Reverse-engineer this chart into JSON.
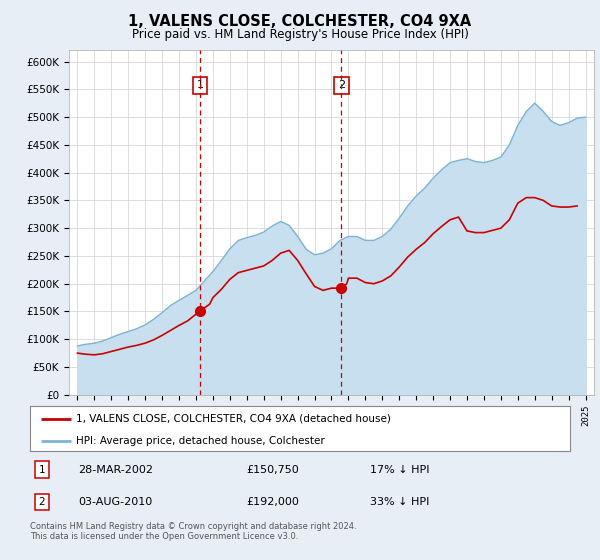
{
  "title": "1, VALENS CLOSE, COLCHESTER, CO4 9XA",
  "subtitle": "Price paid vs. HM Land Registry's House Price Index (HPI)",
  "hpi_color": "#7fb3d3",
  "hpi_fill_color": "#c8dff0",
  "price_color": "#cc0000",
  "sale1_year": 2002.23,
  "sale1_price": 150750,
  "sale1_label": "1",
  "sale1_date": "28-MAR-2002",
  "sale1_hpi_pct": "17% ↓ HPI",
  "sale2_year": 2010.59,
  "sale2_price": 192000,
  "sale2_label": "2",
  "sale2_date": "03-AUG-2010",
  "sale2_hpi_pct": "33% ↓ HPI",
  "legend_label_price": "1, VALENS CLOSE, COLCHESTER, CO4 9XA (detached house)",
  "legend_label_hpi": "HPI: Average price, detached house, Colchester",
  "footer": "Contains HM Land Registry data © Crown copyright and database right 2024.\nThis data is licensed under the Open Government Licence v3.0.",
  "ylim_min": 0,
  "ylim_max": 620000,
  "background_color": "#e8eef5",
  "plot_bg_color": "#ffffff",
  "grid_color": "#d0d0d0",
  "years_hpi": [
    1995.0,
    1995.5,
    1996.0,
    1996.5,
    1997.0,
    1997.5,
    1998.0,
    1998.5,
    1999.0,
    1999.5,
    2000.0,
    2000.5,
    2001.0,
    2001.5,
    2002.0,
    2002.5,
    2003.0,
    2003.5,
    2004.0,
    2004.5,
    2005.0,
    2005.5,
    2006.0,
    2006.5,
    2007.0,
    2007.5,
    2008.0,
    2008.5,
    2009.0,
    2009.5,
    2010.0,
    2010.5,
    2011.0,
    2011.5,
    2012.0,
    2012.5,
    2013.0,
    2013.5,
    2014.0,
    2014.5,
    2015.0,
    2015.5,
    2016.0,
    2016.5,
    2017.0,
    2017.5,
    2018.0,
    2018.5,
    2019.0,
    2019.5,
    2020.0,
    2020.5,
    2021.0,
    2021.5,
    2022.0,
    2022.5,
    2023.0,
    2023.5,
    2024.0,
    2024.5,
    2025.0
  ],
  "hpi_values": [
    88000,
    91000,
    93000,
    97000,
    103000,
    109000,
    114000,
    119000,
    126000,
    136000,
    148000,
    161000,
    170000,
    179000,
    188000,
    205000,
    222000,
    242000,
    263000,
    278000,
    283000,
    287000,
    293000,
    304000,
    312000,
    305000,
    285000,
    262000,
    252000,
    255000,
    263000,
    278000,
    285000,
    285000,
    278000,
    278000,
    285000,
    298000,
    318000,
    340000,
    358000,
    372000,
    390000,
    405000,
    418000,
    422000,
    425000,
    420000,
    418000,
    422000,
    428000,
    450000,
    485000,
    510000,
    525000,
    510000,
    492000,
    485000,
    490000,
    498000,
    500000
  ],
  "years_price": [
    1995.0,
    1995.5,
    1996.0,
    1996.5,
    1997.0,
    1997.5,
    1998.0,
    1998.5,
    1999.0,
    1999.5,
    2000.0,
    2000.5,
    2001.0,
    2001.5,
    2002.23,
    2002.8,
    2003.0,
    2003.5,
    2004.0,
    2004.5,
    2005.0,
    2005.5,
    2006.0,
    2006.5,
    2007.0,
    2007.5,
    2008.0,
    2008.5,
    2009.0,
    2009.5,
    2010.0,
    2010.59,
    2010.9,
    2011.0,
    2011.5,
    2012.0,
    2012.5,
    2013.0,
    2013.5,
    2014.0,
    2014.5,
    2015.0,
    2015.5,
    2016.0,
    2016.5,
    2017.0,
    2017.5,
    2018.0,
    2018.5,
    2019.0,
    2019.5,
    2020.0,
    2020.5,
    2021.0,
    2021.5,
    2022.0,
    2022.5,
    2023.0,
    2023.5,
    2024.0,
    2024.5
  ],
  "price_values": [
    75000,
    73000,
    72000,
    74000,
    78000,
    82000,
    86000,
    89000,
    93000,
    99000,
    107000,
    116000,
    125000,
    133000,
    150750,
    163000,
    175000,
    190000,
    208000,
    220000,
    224000,
    228000,
    232000,
    242000,
    255000,
    260000,
    242000,
    218000,
    195000,
    188000,
    192000,
    192000,
    200000,
    210000,
    210000,
    202000,
    200000,
    205000,
    214000,
    230000,
    248000,
    262000,
    274000,
    290000,
    303000,
    315000,
    320000,
    295000,
    292000,
    292000,
    296000,
    300000,
    315000,
    345000,
    355000,
    355000,
    350000,
    340000,
    338000,
    338000,
    340000
  ]
}
